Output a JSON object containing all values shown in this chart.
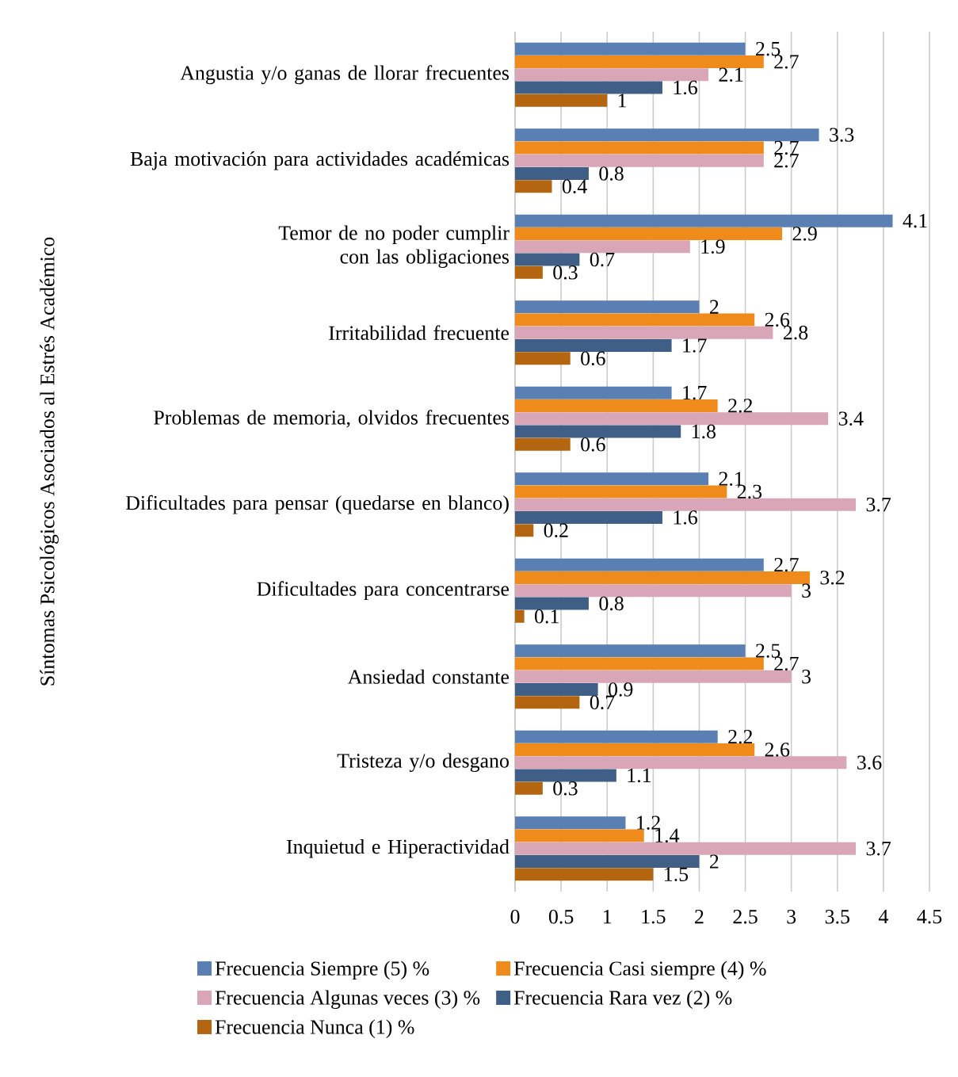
{
  "chart_data": {
    "type": "bar",
    "orientation": "horizontal",
    "ylabel": "Síntomas Psicológicos Asociados al Estrés Académico",
    "categories": [
      "Angustia y/o ganas de llorar frecuentes",
      "Baja motivación para actividades académicas",
      "Temor de no poder cumplir con las obligaciones",
      "Irritabilidad frecuente",
      "Problemas de memoria, olvidos frecuentes",
      "Dificultades para pensar (quedarse en blanco)",
      "Dificultades para concentrarse",
      "Ansiedad constante",
      "Tristeza y/o desgano",
      "Inquietud e Hiperactividad"
    ],
    "series": [
      {
        "name": "Frecuencia Siempre (5) %",
        "color": "#5a7fb3",
        "values": [
          2.5,
          3.3,
          4.1,
          2,
          1.7,
          2.1,
          2.7,
          2.5,
          2.2,
          1.2
        ]
      },
      {
        "name": "Frecuencia Casi siempre (4) %",
        "color": "#ee8b1b",
        "values": [
          2.7,
          2.7,
          2.9,
          2.6,
          2.2,
          2.3,
          3.2,
          2.7,
          2.6,
          1.4
        ]
      },
      {
        "name": "Frecuencia Algunas veces (3) %",
        "color": "#d9a6b7",
        "values": [
          2.1,
          2.7,
          1.9,
          2.8,
          3.4,
          3.7,
          3,
          3,
          3.6,
          3.7
        ]
      },
      {
        "name": "Frecuencia Rara vez (2) %",
        "color": "#3f5f86",
        "values": [
          1.6,
          0.8,
          0.7,
          1.7,
          1.8,
          1.6,
          0.8,
          0.9,
          1.1,
          2
        ]
      },
      {
        "name": "Frecuencia Nunca (1) %",
        "color": "#b4650f",
        "values": [
          1,
          0.4,
          0.3,
          0.6,
          0.6,
          0.2,
          0.1,
          0.7,
          0.3,
          1.5
        ]
      }
    ],
    "xlim": [
      0,
      4.5
    ],
    "xticks": [
      0,
      0.5,
      1,
      1.5,
      2,
      2.5,
      3,
      3.5,
      4,
      4.5
    ],
    "grid": "x",
    "legend": "bottom",
    "data_labels": true
  }
}
